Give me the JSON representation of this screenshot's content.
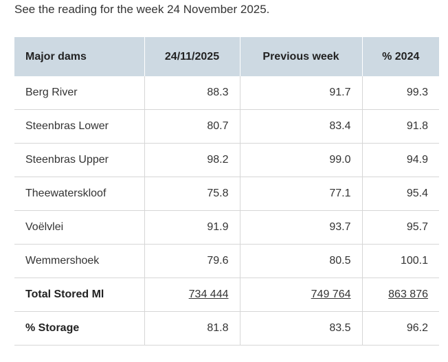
{
  "intro": "See the reading for the week 24 November 2025.",
  "table": {
    "header": [
      "Major dams",
      "24/11/2025",
      "Previous week",
      "% 2024"
    ],
    "rows": [
      [
        "Berg River",
        "88.3",
        "91.7",
        "99.3"
      ],
      [
        "Steenbras Lower",
        "80.7",
        "83.4",
        "91.8"
      ],
      [
        "Steenbras Upper",
        "98.2",
        "99.0",
        "94.9"
      ],
      [
        "Theewaterskloof",
        "75.8",
        "77.1",
        "95.4"
      ],
      [
        "Voëlvlei",
        "91.9",
        "93.7",
        "95.7"
      ],
      [
        "Wemmershoek",
        "79.6",
        "80.5",
        "100.1"
      ],
      [
        "Total Stored Ml",
        "734 444",
        "749 764",
        "863 876"
      ],
      [
        "% Storage",
        "81.8",
        "83.5",
        "96.2"
      ]
    ]
  }
}
